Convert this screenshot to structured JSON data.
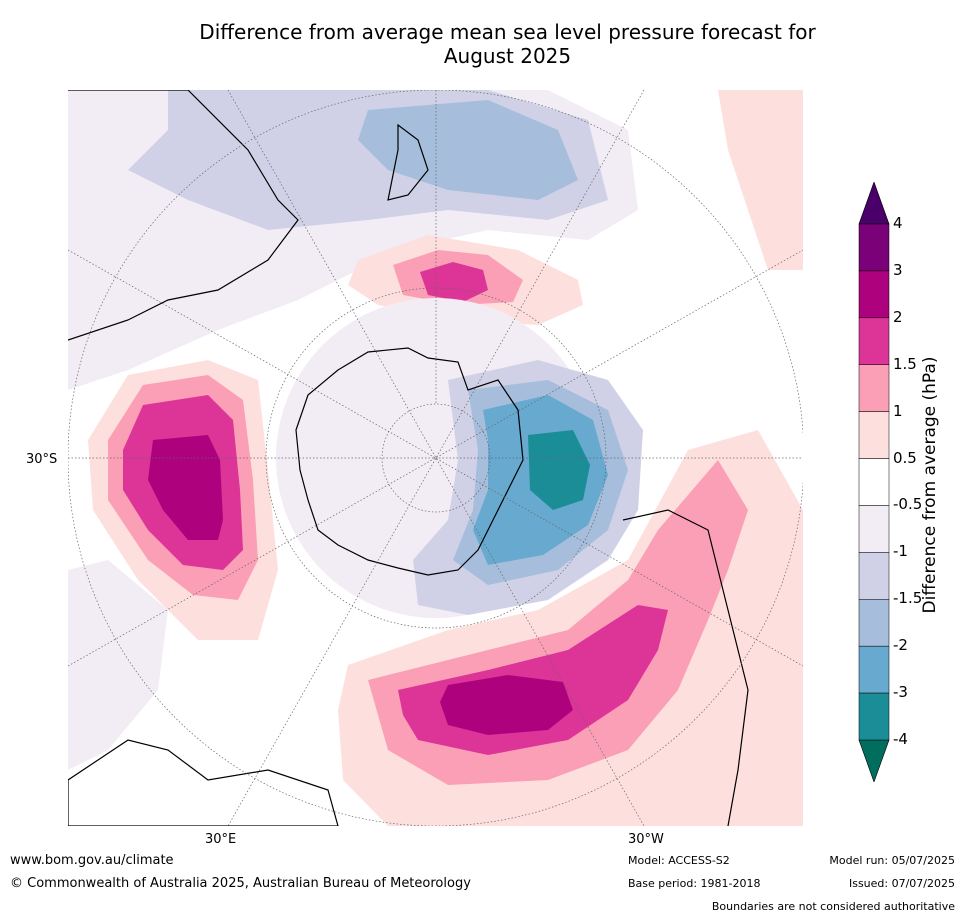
{
  "title_line1": "Difference from average mean sea level pressure forecast for",
  "title_line2": "August 2025",
  "map_labels": {
    "lat_30s": "30°S",
    "lon_30e": "30°E",
    "lon_30w": "30°W"
  },
  "colorbar": {
    "title": "Difference from average (hPa)",
    "ticks": [
      "4",
      "3",
      "2",
      "1.5",
      "1",
      "0.5",
      "-0.5",
      "-1",
      "-1.5",
      "-2",
      "-3",
      "-4"
    ],
    "colors": [
      "#016d5d",
      "#1b8d96",
      "#67a9cf",
      "#a6bddb",
      "#d0d1e6",
      "#f2ecf5",
      "#ffffff",
      "#fde0dd",
      "#fa9fb5",
      "#dd3497",
      "#ae017e",
      "#7a0177",
      "#49006a"
    ]
  },
  "footer": {
    "url": "www.bom.gov.au/climate",
    "copyright": "© Commonwealth of Australia 2025, Australian Bureau of Meteorology",
    "model": "Model: ACCESS-S2",
    "base_period": "Base period: 1981-2018",
    "model_run": "Model run: 05/07/2025",
    "issued": "Issued: 07/07/2025",
    "disclaimer": "Boundaries are not considered authoritative"
  }
}
